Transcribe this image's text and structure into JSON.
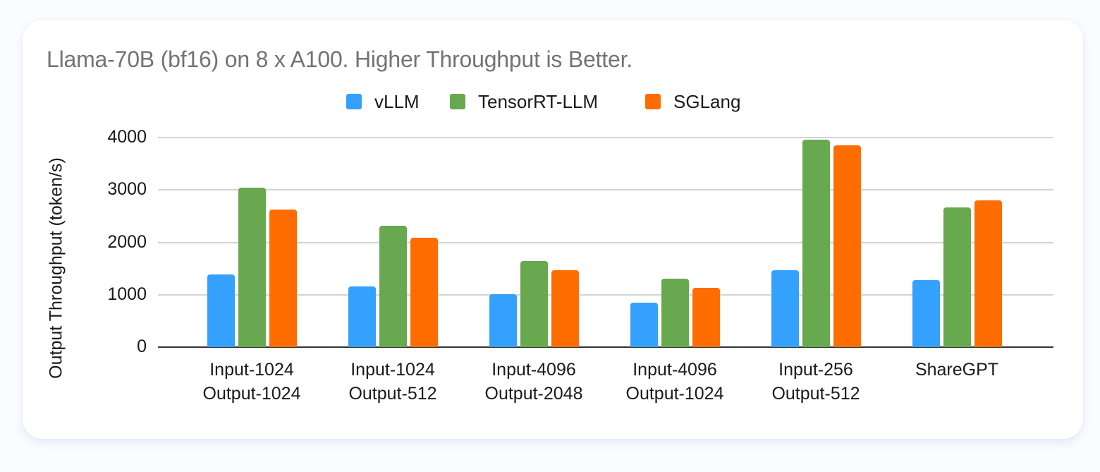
{
  "chart_data": {
    "type": "bar",
    "title": "Llama-70B (bf16) on 8 x A100. Higher Throughput is Better.",
    "xlabel": "",
    "ylabel": "Output Throughput (token/s)",
    "ylim": [
      0,
      4000
    ],
    "yticks": [
      "4000",
      "3000",
      "2000",
      "1000",
      "0"
    ],
    "grid": true,
    "legend_position": "top",
    "categories": [
      [
        "Input-1024",
        "Output-1024"
      ],
      [
        "Input-1024",
        "Output-512"
      ],
      [
        "Input-4096",
        "Output-2048"
      ],
      [
        "Input-4096",
        "Output-1024"
      ],
      [
        "Input-256",
        "Output-512"
      ],
      [
        "ShareGPT",
        ""
      ]
    ],
    "series": [
      {
        "name": "vLLM",
        "color": "#34a0ff",
        "values": [
          1390,
          1160,
          1010,
          850,
          1470,
          1280
        ]
      },
      {
        "name": "TensorRT-LLM",
        "color": "#68a84e",
        "values": [
          3050,
          2320,
          1640,
          1310,
          3960,
          2660
        ]
      },
      {
        "name": "SGLang",
        "color": "#ff6d00",
        "values": [
          2630,
          2090,
          1470,
          1130,
          3850,
          2800
        ]
      }
    ]
  }
}
